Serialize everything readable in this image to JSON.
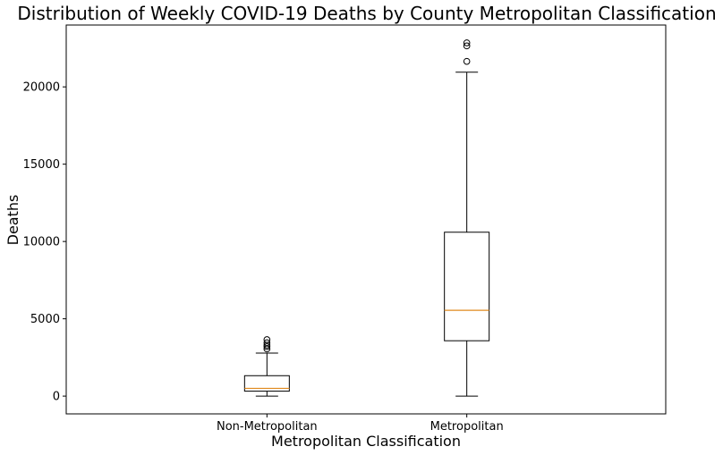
{
  "chart_data": {
    "type": "box",
    "title": "Distribution of Weekly COVID-19 Deaths by County Metropolitan Classification",
    "xlabel": "Metropolitan Classification",
    "ylabel": "Deaths",
    "ylim": [
      -1150,
      24000
    ],
    "yticks": [
      0,
      5000,
      10000,
      15000,
      20000
    ],
    "categories": [
      "Non-Metropolitan",
      "Metropolitan"
    ],
    "grid": false,
    "colors": {
      "box": "#000000",
      "median": "#e08a1e",
      "background": "#ffffff"
    },
    "boxes": [
      {
        "category": "Non-Metropolitan",
        "min": 0,
        "q1": 320,
        "median": 500,
        "q3": 1320,
        "max": 2780,
        "outliers": [
          3050,
          3200,
          3300,
          3450,
          3650
        ]
      },
      {
        "category": "Metropolitan",
        "min": 0,
        "q1": 3580,
        "median": 5550,
        "q3": 10600,
        "max": 20950,
        "outliers": [
          21650,
          22650,
          22850
        ]
      }
    ]
  }
}
